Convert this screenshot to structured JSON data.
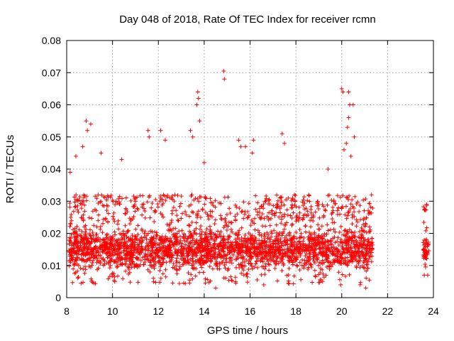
{
  "chart_data": {
    "type": "scatter",
    "title": "Day 048 of 2018, Rate Of TEC Index for receiver rcmn",
    "xlabel": "GPS time / hours",
    "ylabel": "ROTI / TECUs",
    "xlim": [
      8,
      24
    ],
    "ylim": [
      0,
      0.08
    ],
    "x_ticks": [
      8,
      10,
      12,
      14,
      16,
      18,
      20,
      22,
      24
    ],
    "y_ticks": [
      0,
      0.01,
      0.02,
      0.03,
      0.04,
      0.05,
      0.06,
      0.07,
      0.08
    ],
    "x_tick_labels": [
      "8",
      "10",
      "12",
      "14",
      "16",
      "18",
      "20",
      "22",
      "24"
    ],
    "y_tick_labels": [
      "0",
      "0.01",
      "0.02",
      "0.03",
      "0.04",
      "0.05",
      "0.06",
      "0.07",
      "0.08"
    ],
    "grid": true,
    "marker": "plus",
    "color": "#ff0000",
    "series": [
      {
        "name": "ROTI",
        "segments": [
          {
            "x_start": 8.1,
            "x_end": 21.35,
            "typical_low": 0.008,
            "typical_high": 0.022,
            "upper_envelope": 0.032
          },
          {
            "x_start": 23.55,
            "x_end": 23.8,
            "typical_low": 0.009,
            "typical_high": 0.02,
            "upper_envelope": 0.029
          }
        ],
        "notable_points": [
          {
            "x": 8.15,
            "y": 0.039
          },
          {
            "x": 8.4,
            "y": 0.044
          },
          {
            "x": 8.7,
            "y": 0.047
          },
          {
            "x": 8.85,
            "y": 0.055
          },
          {
            "x": 8.9,
            "y": 0.052
          },
          {
            "x": 9.05,
            "y": 0.054
          },
          {
            "x": 9.5,
            "y": 0.045
          },
          {
            "x": 10.4,
            "y": 0.043
          },
          {
            "x": 11.55,
            "y": 0.052
          },
          {
            "x": 11.6,
            "y": 0.05
          },
          {
            "x": 12.1,
            "y": 0.052
          },
          {
            "x": 12.3,
            "y": 0.049
          },
          {
            "x": 13.4,
            "y": 0.052
          },
          {
            "x": 13.5,
            "y": 0.05
          },
          {
            "x": 13.72,
            "y": 0.064
          },
          {
            "x": 13.75,
            "y": 0.062
          },
          {
            "x": 13.68,
            "y": 0.06
          },
          {
            "x": 13.8,
            "y": 0.055
          },
          {
            "x": 14.0,
            "y": 0.042
          },
          {
            "x": 14.85,
            "y": 0.0705
          },
          {
            "x": 14.88,
            "y": 0.068
          },
          {
            "x": 15.5,
            "y": 0.049
          },
          {
            "x": 15.6,
            "y": 0.047
          },
          {
            "x": 15.8,
            "y": 0.047
          },
          {
            "x": 16.15,
            "y": 0.049
          },
          {
            "x": 16.1,
            "y": 0.045
          },
          {
            "x": 17.4,
            "y": 0.051
          },
          {
            "x": 17.5,
            "y": 0.048
          },
          {
            "x": 19.4,
            "y": 0.04
          },
          {
            "x": 20.0,
            "y": 0.065
          },
          {
            "x": 20.05,
            "y": 0.064
          },
          {
            "x": 20.3,
            "y": 0.064
          },
          {
            "x": 20.35,
            "y": 0.06
          },
          {
            "x": 20.5,
            "y": 0.06
          },
          {
            "x": 20.3,
            "y": 0.056
          },
          {
            "x": 20.55,
            "y": 0.05
          },
          {
            "x": 20.25,
            "y": 0.053
          },
          {
            "x": 20.2,
            "y": 0.048
          },
          {
            "x": 20.4,
            "y": 0.044
          },
          {
            "x": 20.1,
            "y": 0.046
          },
          {
            "x": 21.3,
            "y": 0.032
          },
          {
            "x": 16.6,
            "y": 0.004
          },
          {
            "x": 14.5,
            "y": 0.003
          },
          {
            "x": 19.95,
            "y": 0.004
          },
          {
            "x": 21.05,
            "y": 0.003
          },
          {
            "x": 23.6,
            "y": 0.007
          },
          {
            "x": 23.75,
            "y": 0.007
          },
          {
            "x": 23.7,
            "y": 0.029
          }
        ]
      }
    ]
  }
}
